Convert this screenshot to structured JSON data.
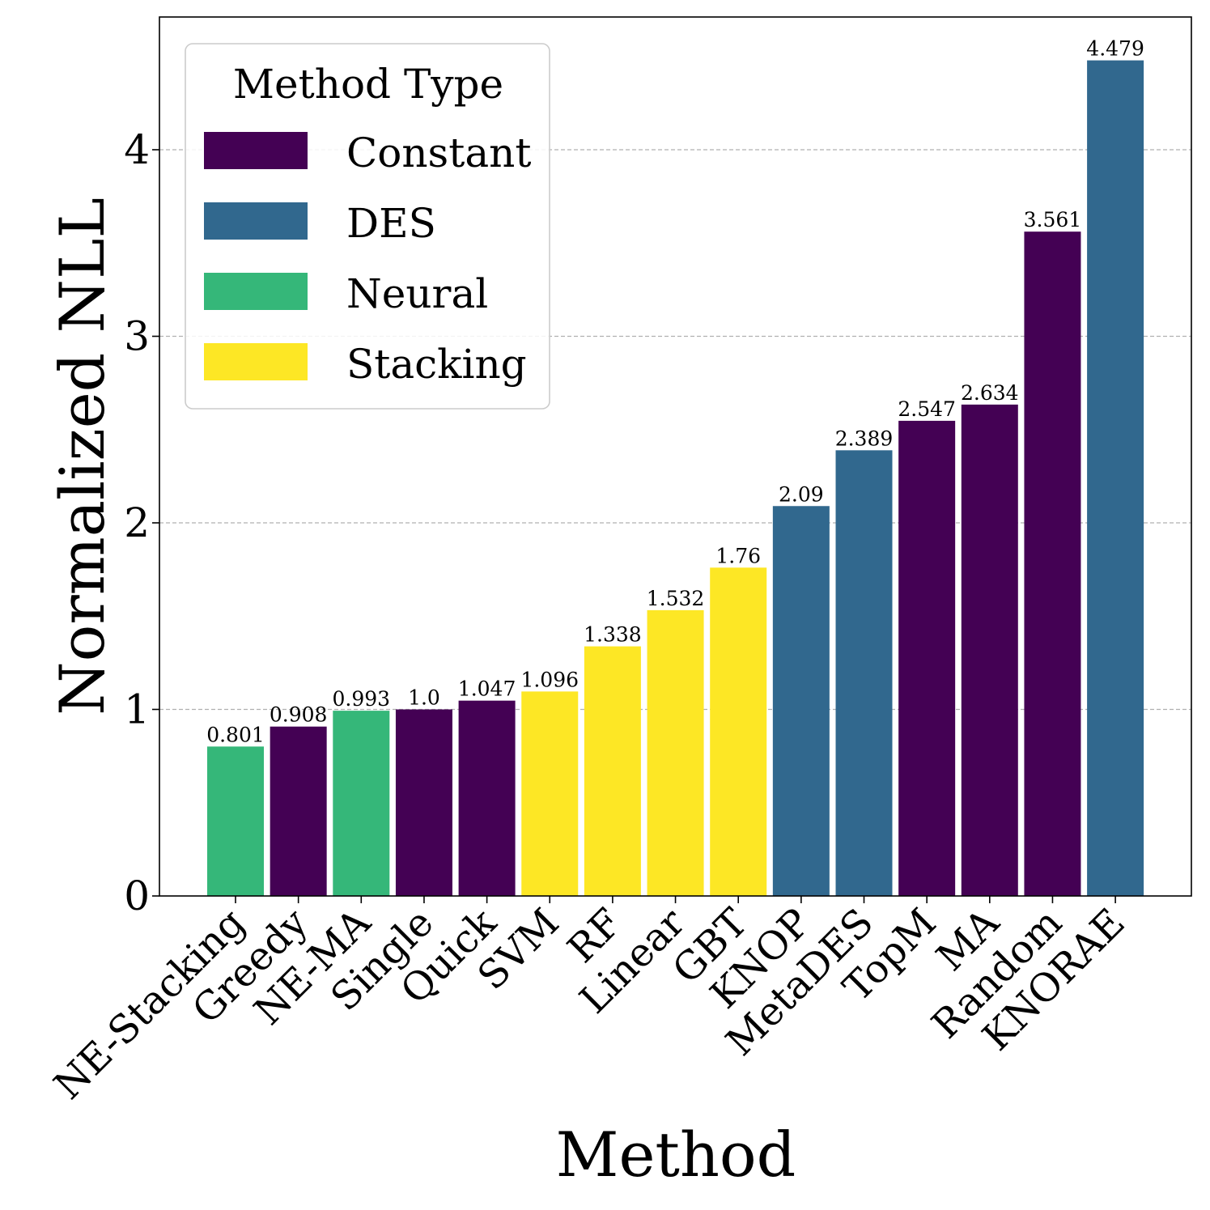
{
  "chart_data": {
    "type": "bar",
    "title": "",
    "xlabel": "Method",
    "ylabel": "Normalized NLL",
    "ylim": [
      0,
      4.7
    ],
    "yticks": [
      0,
      1,
      2,
      3,
      4
    ],
    "grid": "horizontal-dashed",
    "categories": [
      "NE-Stacking",
      "Greedy",
      "NE-MA",
      "Single",
      "Quick",
      "SVM",
      "RF",
      "Linear",
      "GBT",
      "KNOP",
      "MetaDES",
      "TopM",
      "MA",
      "Random",
      "KNORAE"
    ],
    "values": [
      0.801,
      0.908,
      0.993,
      1.0,
      1.047,
      1.096,
      1.338,
      1.532,
      1.76,
      2.09,
      2.389,
      2.547,
      2.634,
      3.561,
      4.479
    ],
    "value_labels": [
      "0.801",
      "0.908",
      "0.993",
      "1.0",
      "1.047",
      "1.096",
      "1.338",
      "1.532",
      "1.76",
      "2.09",
      "2.389",
      "2.547",
      "2.634",
      "3.561",
      "4.479"
    ],
    "types": [
      "Neural",
      "Constant",
      "Neural",
      "Constant",
      "Constant",
      "Stacking",
      "Stacking",
      "Stacking",
      "Stacking",
      "DES",
      "DES",
      "Constant",
      "Constant",
      "Constant",
      "DES"
    ],
    "legend": {
      "title": "Method Type",
      "position": "top-left",
      "entries": [
        {
          "label": "Constant",
          "color": "#440154"
        },
        {
          "label": "DES",
          "color": "#31688e"
        },
        {
          "label": "Neural",
          "color": "#35b779"
        },
        {
          "label": "Stacking",
          "color": "#fde725"
        }
      ]
    }
  }
}
